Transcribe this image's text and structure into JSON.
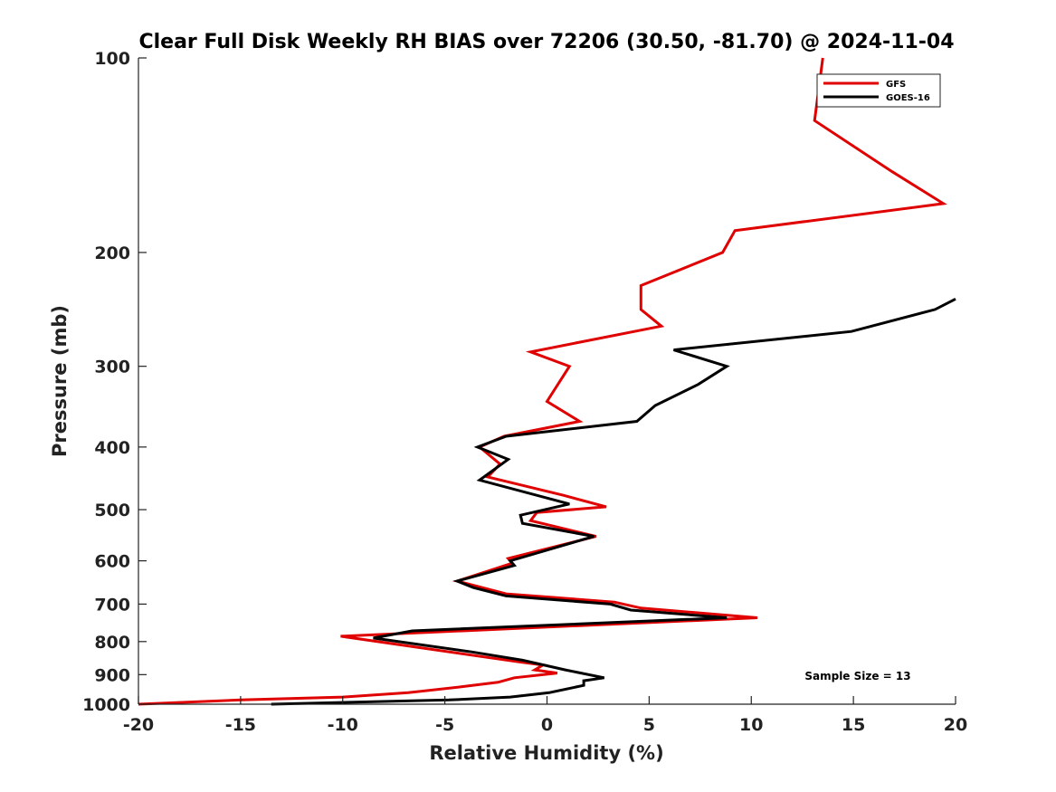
{
  "chart_data": {
    "type": "line",
    "title": "Clear Full Disk Weekly RH BIAS over 72206 (30.50, -81.70) @ 2024-11-04",
    "xlabel": "Relative Humidity (%)",
    "ylabel": "Pressure (mb)",
    "xlim": [
      -20,
      20
    ],
    "ylim": [
      100,
      1000
    ],
    "y_scale": "log",
    "y_reversed": true,
    "x_ticks": [
      -20,
      -15,
      -10,
      -5,
      0,
      5,
      10,
      15,
      20
    ],
    "x_tick_labels": [
      "-20",
      "-15",
      "-10",
      "-5",
      "0",
      "5",
      "10",
      "15",
      "20"
    ],
    "y_ticks": [
      100,
      200,
      300,
      400,
      500,
      600,
      700,
      800,
      900,
      1000
    ],
    "y_tick_labels": [
      "100",
      "200",
      "300",
      "400",
      "500",
      "600",
      "700",
      "800",
      "900",
      "1000"
    ],
    "grid": false,
    "legend_position": "top-right",
    "annotation": "Sample Size = 13",
    "series": [
      {
        "name": "GFS",
        "color": "#e00000",
        "points": [
          [
            13.5,
            100
          ],
          [
            13.1,
            125
          ],
          [
            16.9,
            150
          ],
          [
            19.4,
            168
          ],
          [
            9.2,
            185
          ],
          [
            8.6,
            200
          ],
          [
            4.6,
            225
          ],
          [
            4.6,
            245
          ],
          [
            5.6,
            260
          ],
          [
            -0.8,
            285
          ],
          [
            1.1,
            300
          ],
          [
            0.0,
            340
          ],
          [
            1.6,
            365
          ],
          [
            -2.1,
            385
          ],
          [
            -3.3,
            400
          ],
          [
            -2.3,
            425
          ],
          [
            -2.9,
            445
          ],
          [
            0.8,
            475
          ],
          [
            2.9,
            495
          ],
          [
            -0.5,
            505
          ],
          [
            -0.8,
            520
          ],
          [
            2.4,
            550
          ],
          [
            -1.9,
            595
          ],
          [
            -1.7,
            605
          ],
          [
            -4.4,
            645
          ],
          [
            -2.0,
            675
          ],
          [
            3.3,
            695
          ],
          [
            4.6,
            710
          ],
          [
            10.3,
            735
          ],
          [
            -10.1,
            785
          ],
          [
            -1.4,
            860
          ],
          [
            -0.2,
            870
          ],
          [
            -0.6,
            885
          ],
          [
            0.5,
            895
          ],
          [
            -1.6,
            910
          ],
          [
            -2.4,
            925
          ],
          [
            -4.2,
            940
          ],
          [
            -6.8,
            960
          ],
          [
            -10.0,
            975
          ],
          [
            -15.0,
            985
          ],
          [
            -20.0,
            1000
          ]
        ]
      },
      {
        "name": "GOES-16",
        "color": "#000000",
        "points": [
          [
            20.0,
            236
          ],
          [
            19.0,
            245
          ],
          [
            14.9,
            265
          ],
          [
            6.2,
            283
          ],
          [
            8.8,
            300
          ],
          [
            7.4,
            320
          ],
          [
            5.3,
            345
          ],
          [
            4.4,
            365
          ],
          [
            -2.0,
            385
          ],
          [
            -3.4,
            400
          ],
          [
            -1.9,
            418
          ],
          [
            -3.3,
            450
          ],
          [
            1.1,
            490
          ],
          [
            -1.3,
            510
          ],
          [
            -1.2,
            525
          ],
          [
            2.3,
            550
          ],
          [
            -0.2,
            580
          ],
          [
            -1.8,
            600
          ],
          [
            -1.6,
            610
          ],
          [
            -4.4,
            645
          ],
          [
            -3.6,
            660
          ],
          [
            -2.0,
            680
          ],
          [
            3.1,
            700
          ],
          [
            4.1,
            715
          ],
          [
            8.8,
            735
          ],
          [
            -6.6,
            770
          ],
          [
            -8.5,
            790
          ],
          [
            -3.7,
            830
          ],
          [
            -1.2,
            855
          ],
          [
            0.9,
            885
          ],
          [
            2.8,
            910
          ],
          [
            1.8,
            920
          ],
          [
            1.8,
            935
          ],
          [
            0.1,
            960
          ],
          [
            -1.8,
            975
          ],
          [
            -4.8,
            985
          ],
          [
            -13.5,
            1000
          ]
        ]
      }
    ]
  }
}
